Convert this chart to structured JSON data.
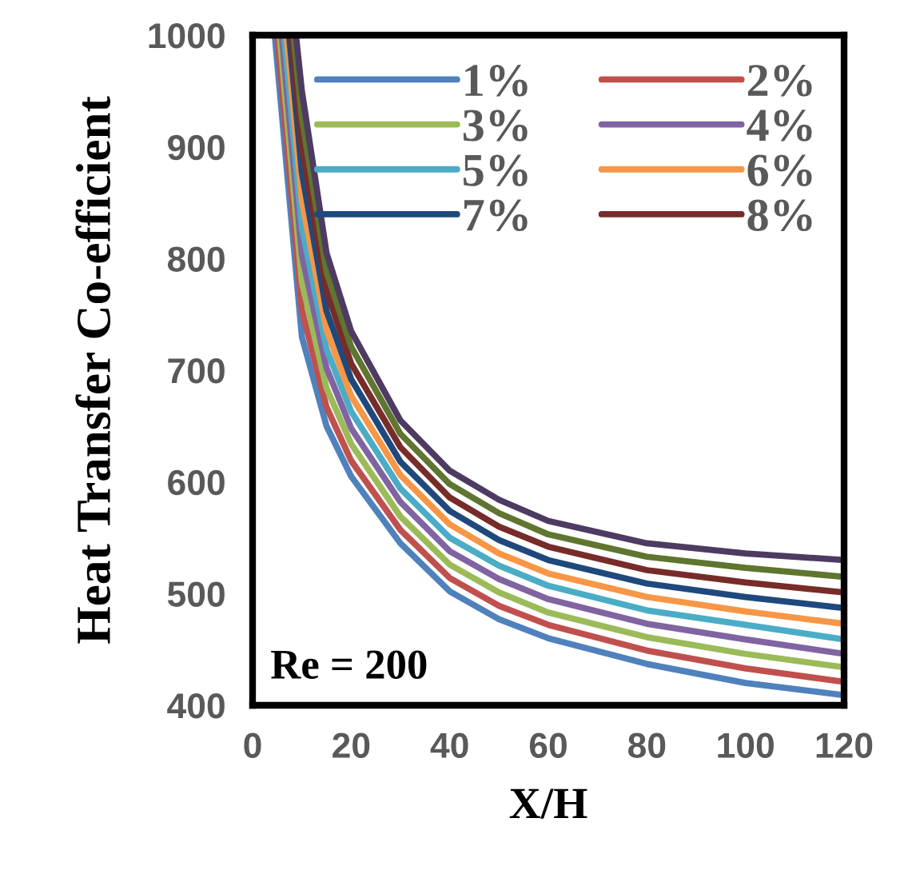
{
  "chart_data": {
    "type": "line",
    "xlabel": "X/H",
    "ylabel": "Heat Transfer Co-efficient",
    "xlim": [
      0,
      120
    ],
    "xticks": [
      0,
      20,
      40,
      60,
      80,
      100,
      120
    ],
    "ylim": [
      400,
      1000
    ],
    "yticks": [
      400,
      500,
      600,
      700,
      800,
      900,
      1000
    ],
    "grid": false,
    "legend": "top right",
    "marker": "none",
    "line_style": "solid",
    "annotations": [
      "Re = 200"
    ],
    "series": [
      {
        "name": "1%",
        "color": "#4f81bd",
        "x": [
          4.5,
          10,
          15,
          20,
          30,
          40,
          50,
          60,
          80,
          100,
          120
        ],
        "values": [
          1000,
          730,
          650,
          605,
          545,
          502,
          477,
          460,
          437,
          420,
          409
        ]
      },
      {
        "name": "2%",
        "color": "#c0504d",
        "x": [
          5,
          10,
          15,
          20,
          30,
          40,
          50,
          60,
          80,
          100,
          120
        ],
        "values": [
          1000,
          754,
          667,
          619,
          557,
          514,
          489,
          472,
          449,
          433,
          421
        ]
      },
      {
        "name": "3%",
        "color": "#9bbb59",
        "x": [
          5.5,
          10,
          15,
          20,
          30,
          40,
          50,
          60,
          80,
          100,
          120
        ],
        "values": [
          1000,
          779,
          684,
          634,
          569,
          526,
          501,
          483,
          461,
          446,
          434
        ]
      },
      {
        "name": "4%",
        "color": "#8064a2",
        "x": [
          5.9,
          10,
          15,
          20,
          30,
          40,
          50,
          60,
          80,
          100,
          120
        ],
        "values": [
          1000,
          803,
          702,
          648,
          582,
          538,
          513,
          495,
          473,
          459,
          446
        ]
      },
      {
        "name": "5%",
        "color": "#4bacc6",
        "x": [
          6.4,
          10,
          15,
          20,
          30,
          40,
          50,
          60,
          80,
          100,
          120
        ],
        "values": [
          1000,
          828,
          719,
          663,
          594,
          550,
          525,
          507,
          485,
          472,
          459
        ]
      },
      {
        "name": "6%",
        "color": "#f79646",
        "x": [
          6.9,
          10,
          15,
          20,
          30,
          40,
          50,
          60,
          80,
          100,
          120
        ],
        "values": [
          1000,
          852,
          736,
          677,
          606,
          562,
          536,
          518,
          497,
          484,
          473
        ]
      },
      {
        "name": "7%",
        "color": "#1f497d",
        "x": [
          7.4,
          10,
          15,
          20,
          30,
          40,
          50,
          60,
          80,
          100,
          120
        ],
        "values": [
          1000,
          877,
          753,
          692,
          618,
          574,
          548,
          530,
          509,
          497,
          487
        ]
      },
      {
        "name": "8%",
        "color": "#772c2a",
        "x": [
          7.8,
          10,
          15,
          20,
          30,
          40,
          50,
          60,
          80,
          100,
          120
        ],
        "values": [
          1000,
          901,
          771,
          706,
          631,
          586,
          560,
          542,
          521,
          510,
          501
        ]
      },
      {
        "color": "#5f7530",
        "x": [
          8.3,
          10,
          15,
          20,
          30,
          40,
          50,
          60,
          80,
          100,
          120
        ],
        "values": [
          1000,
          926,
          788,
          721,
          643,
          598,
          572,
          553,
          533,
          523,
          515
        ]
      },
      {
        "color": "#4d3b62",
        "x": [
          8.8,
          10,
          15,
          20,
          30,
          40,
          50,
          60,
          80,
          100,
          120
        ],
        "values": [
          1000,
          950,
          805,
          735,
          655,
          610,
          584,
          565,
          545,
          536,
          530
        ]
      }
    ]
  }
}
